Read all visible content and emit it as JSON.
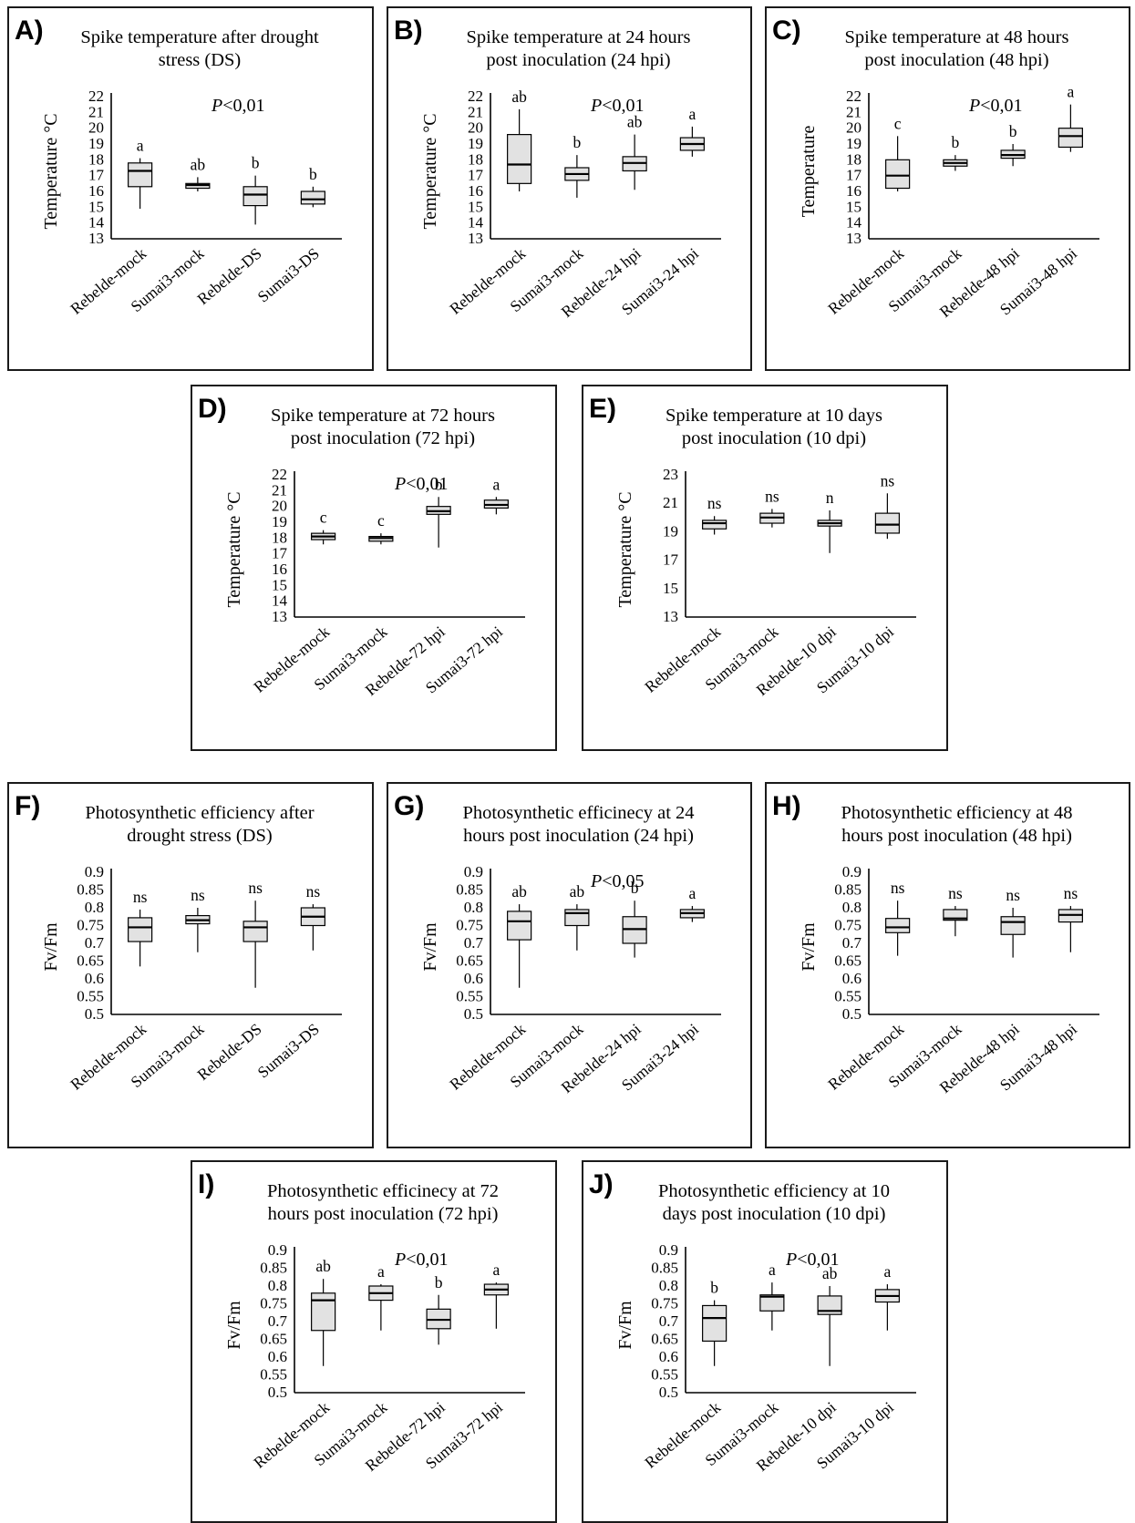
{
  "chart_data": [
    {
      "type": "box",
      "panel": "A)",
      "title": [
        "Spike temperature after drought",
        "stress (DS)"
      ],
      "ylabel": "Temperature °C",
      "pvalue": "<0,01",
      "ylim": [
        13,
        22
      ],
      "yticks": [
        13,
        14,
        15,
        16,
        17,
        18,
        19,
        20,
        21,
        22
      ],
      "categories": [
        "Rebelde-mock",
        "Sumai3-mock",
        "Rebelde-DS",
        "Sumai3-DS"
      ],
      "boxes": [
        {
          "min": 14.9,
          "q1": 16.3,
          "median": 17.3,
          "q3": 17.8,
          "max": 18.1
        },
        {
          "min": 16.0,
          "q1": 16.2,
          "median": 16.4,
          "q3": 16.5,
          "max": 16.9
        },
        {
          "min": 13.9,
          "q1": 15.1,
          "median": 15.8,
          "q3": 16.3,
          "max": 17.0
        },
        {
          "min": 15.0,
          "q1": 15.2,
          "median": 15.5,
          "q3": 16.0,
          "max": 16.3
        }
      ],
      "letters": [
        "a",
        "ab",
        "b",
        "b"
      ]
    },
    {
      "type": "box",
      "panel": "B)",
      "title": [
        "Spike temperature at 24 hours",
        "post inoculation (24 hpi)"
      ],
      "ylabel": "Temperature °C",
      "pvalue": "<0,01",
      "ylim": [
        13,
        22
      ],
      "yticks": [
        13,
        14,
        15,
        16,
        17,
        18,
        19,
        20,
        21,
        22
      ],
      "categories": [
        "Rebelde-mock",
        "Sumai3-mock",
        "Rebelde-24 hpi",
        "Sumai3-24 hpi"
      ],
      "boxes": [
        {
          "min": 16.0,
          "q1": 16.5,
          "median": 17.7,
          "q3": 19.6,
          "max": 21.2
        },
        {
          "min": 15.6,
          "q1": 16.7,
          "median": 17.1,
          "q3": 17.5,
          "max": 18.3
        },
        {
          "min": 16.1,
          "q1": 17.3,
          "median": 17.8,
          "q3": 18.2,
          "max": 19.6
        },
        {
          "min": 18.2,
          "q1": 18.6,
          "median": 19.0,
          "q3": 19.4,
          "max": 20.1
        }
      ],
      "letters": [
        "ab",
        "b",
        "ab",
        "a"
      ]
    },
    {
      "type": "box",
      "panel": "C)",
      "title": [
        "Spike temperature at 48 hours",
        "post inoculation (48 hpi)"
      ],
      "ylabel": "Temperature",
      "pvalue": "<0,01",
      "ylim": [
        13,
        22
      ],
      "yticks": [
        13,
        14,
        15,
        16,
        17,
        18,
        19,
        20,
        21,
        22
      ],
      "categories": [
        "Rebelde-mock",
        "Sumai3-mock",
        "Rebelde-48 hpi",
        "Sumai3-48 hpi"
      ],
      "boxes": [
        {
          "min": 16.0,
          "q1": 16.2,
          "median": 17.0,
          "q3": 18.0,
          "max": 19.5
        },
        {
          "min": 17.3,
          "q1": 17.6,
          "median": 17.8,
          "q3": 18.0,
          "max": 18.3
        },
        {
          "min": 17.6,
          "q1": 18.1,
          "median": 18.3,
          "q3": 18.6,
          "max": 19.0
        },
        {
          "min": 18.5,
          "q1": 18.8,
          "median": 19.5,
          "q3": 20.0,
          "max": 21.5
        }
      ],
      "letters": [
        "c",
        "b",
        "b",
        "a"
      ]
    },
    {
      "type": "box",
      "panel": "D)",
      "title": [
        "Spike temperature at 72 hours",
        "post inoculation (72 hpi)"
      ],
      "ylabel": "Temperature °C",
      "pvalue": "<0,01",
      "ylim": [
        13,
        22
      ],
      "yticks": [
        13,
        14,
        15,
        16,
        17,
        18,
        19,
        20,
        21,
        22
      ],
      "categories": [
        "Rebelde-mock",
        "Sumai3-mock",
        "Rebelde-72 hpi",
        "Sumai3-72 hpi"
      ],
      "boxes": [
        {
          "min": 17.6,
          "q1": 17.9,
          "median": 18.1,
          "q3": 18.3,
          "max": 18.5
        },
        {
          "min": 17.6,
          "q1": 17.8,
          "median": 18.0,
          "q3": 18.1,
          "max": 18.3
        },
        {
          "min": 17.4,
          "q1": 19.5,
          "median": 19.7,
          "q3": 20.0,
          "max": 20.6
        },
        {
          "min": 19.5,
          "q1": 19.9,
          "median": 20.1,
          "q3": 20.4,
          "max": 20.6
        }
      ],
      "letters": [
        "c",
        "c",
        "b",
        "a"
      ]
    },
    {
      "type": "box",
      "panel": "E)",
      "title": [
        "Spike temperature at 10 days",
        "post inoculation (10 dpi)"
      ],
      "ylabel": "Temperature °C",
      "pvalue": "",
      "ylim": [
        13,
        23
      ],
      "yticks": [
        13,
        15,
        17,
        19,
        21,
        23
      ],
      "categories": [
        "Rebelde-mock",
        "Sumai3-mock",
        "Rebelde-10 dpi",
        "Sumai3-10 dpi"
      ],
      "boxes": [
        {
          "min": 18.8,
          "q1": 19.2,
          "median": 19.6,
          "q3": 19.8,
          "max": 20.1
        },
        {
          "min": 19.3,
          "q1": 19.6,
          "median": 20.0,
          "q3": 20.3,
          "max": 20.6
        },
        {
          "min": 17.5,
          "q1": 19.4,
          "median": 19.6,
          "q3": 19.8,
          "max": 20.5
        },
        {
          "min": 18.5,
          "q1": 18.9,
          "median": 19.5,
          "q3": 20.3,
          "max": 21.7
        }
      ],
      "letters": [
        "ns",
        "ns",
        "n",
        "ns"
      ]
    },
    {
      "type": "box",
      "panel": "F)",
      "title": [
        "Photosynthetic efficiency after",
        "drought stress (DS)"
      ],
      "ylabel": "Fv/Fm",
      "pvalue": "",
      "ylim": [
        0.5,
        0.9
      ],
      "yticks": [
        0.5,
        0.55,
        0.6,
        0.65,
        0.7,
        0.75,
        0.8,
        0.85,
        0.9
      ],
      "categories": [
        "Rebelde-mock",
        "Sumai3-mock",
        "Rebelde-DS",
        "Sumai3-DS"
      ],
      "boxes": [
        {
          "min": 0.635,
          "q1": 0.705,
          "median": 0.745,
          "q3": 0.772,
          "max": 0.795
        },
        {
          "min": 0.675,
          "q1": 0.755,
          "median": 0.765,
          "q3": 0.778,
          "max": 0.8
        },
        {
          "min": 0.575,
          "q1": 0.705,
          "median": 0.745,
          "q3": 0.762,
          "max": 0.82
        },
        {
          "min": 0.68,
          "q1": 0.75,
          "median": 0.775,
          "q3": 0.8,
          "max": 0.81
        }
      ],
      "letters": [
        "ns",
        "ns",
        "ns",
        "ns"
      ]
    },
    {
      "type": "box",
      "panel": "G)",
      "title": [
        "Photosynthetic efficinecy at 24",
        "hours post inoculation (24 hpi)"
      ],
      "ylabel": "Fv/Fm",
      "pvalue": "<0,05",
      "ylim": [
        0.5,
        0.9
      ],
      "yticks": [
        0.5,
        0.55,
        0.6,
        0.65,
        0.7,
        0.75,
        0.8,
        0.85,
        0.9
      ],
      "categories": [
        "Rebelde-mock",
        "Sumai3-mock",
        "Rebelde-24 hpi",
        "Sumai3-24 hpi"
      ],
      "boxes": [
        {
          "min": 0.575,
          "q1": 0.71,
          "median": 0.762,
          "q3": 0.79,
          "max": 0.81
        },
        {
          "min": 0.68,
          "q1": 0.75,
          "median": 0.785,
          "q3": 0.795,
          "max": 0.81
        },
        {
          "min": 0.66,
          "q1": 0.7,
          "median": 0.74,
          "q3": 0.775,
          "max": 0.82
        },
        {
          "min": 0.76,
          "q1": 0.772,
          "median": 0.785,
          "q3": 0.795,
          "max": 0.805
        }
      ],
      "letters": [
        "ab",
        "ab",
        "b",
        "a"
      ]
    },
    {
      "type": "box",
      "panel": "H)",
      "title": [
        "Photosynthetic efficiency at 48",
        "hours post inoculation (48 hpi)"
      ],
      "ylabel": "Fv/Fm",
      "pvalue": "",
      "ylim": [
        0.5,
        0.9
      ],
      "yticks": [
        0.5,
        0.55,
        0.6,
        0.65,
        0.7,
        0.75,
        0.8,
        0.85,
        0.9
      ],
      "categories": [
        "Rebelde-mock",
        "Sumai3-mock",
        "Rebelde-48 hpi",
        "Sumai3-48 hpi"
      ],
      "boxes": [
        {
          "min": 0.665,
          "q1": 0.73,
          "median": 0.745,
          "q3": 0.77,
          "max": 0.82
        },
        {
          "min": 0.72,
          "q1": 0.765,
          "median": 0.77,
          "q3": 0.795,
          "max": 0.805
        },
        {
          "min": 0.66,
          "q1": 0.725,
          "median": 0.76,
          "q3": 0.775,
          "max": 0.8
        },
        {
          "min": 0.675,
          "q1": 0.76,
          "median": 0.78,
          "q3": 0.795,
          "max": 0.805
        }
      ],
      "letters": [
        "ns",
        "ns",
        "ns",
        "ns"
      ]
    },
    {
      "type": "box",
      "panel": "I)",
      "title": [
        "Photosynthetic efficinecy at 72",
        "hours post inoculation (72 hpi)"
      ],
      "ylabel": "Fv/Fm",
      "pvalue": "<0,01",
      "ylim": [
        0.5,
        0.9
      ],
      "yticks": [
        0.5,
        0.55,
        0.6,
        0.65,
        0.7,
        0.75,
        0.8,
        0.85,
        0.9
      ],
      "categories": [
        "Rebelde-mock",
        "Sumai3-mock",
        "Rebelde-72 hpi",
        "Sumai3-72 hpi"
      ],
      "boxes": [
        {
          "min": 0.575,
          "q1": 0.675,
          "median": 0.76,
          "q3": 0.78,
          "max": 0.82
        },
        {
          "min": 0.675,
          "q1": 0.76,
          "median": 0.78,
          "q3": 0.8,
          "max": 0.805
        },
        {
          "min": 0.635,
          "q1": 0.68,
          "median": 0.705,
          "q3": 0.735,
          "max": 0.775
        },
        {
          "min": 0.68,
          "q1": 0.775,
          "median": 0.79,
          "q3": 0.805,
          "max": 0.81
        }
      ],
      "letters": [
        "ab",
        "a",
        "b",
        "a"
      ]
    },
    {
      "type": "box",
      "panel": "J)",
      "title": [
        "Photosynthetic efficiency at 10",
        "days post inoculation (10 dpi)"
      ],
      "ylabel": "Fv/Fm",
      "pvalue": "<0,01",
      "ylim": [
        0.5,
        0.9
      ],
      "yticks": [
        0.5,
        0.55,
        0.6,
        0.65,
        0.7,
        0.75,
        0.8,
        0.85,
        0.9
      ],
      "categories": [
        "Rebelde-mock",
        "Sumai3-mock",
        "Rebelde-10 dpi",
        "Sumai3-10 dpi"
      ],
      "boxes": [
        {
          "min": 0.575,
          "q1": 0.645,
          "median": 0.71,
          "q3": 0.745,
          "max": 0.76
        },
        {
          "min": 0.675,
          "q1": 0.73,
          "median": 0.77,
          "q3": 0.775,
          "max": 0.81
        },
        {
          "min": 0.575,
          "q1": 0.72,
          "median": 0.73,
          "q3": 0.772,
          "max": 0.8
        },
        {
          "min": 0.675,
          "q1": 0.755,
          "median": 0.772,
          "q3": 0.79,
          "max": 0.805
        }
      ],
      "letters": [
        "b",
        "a",
        "ab",
        "a"
      ]
    }
  ]
}
